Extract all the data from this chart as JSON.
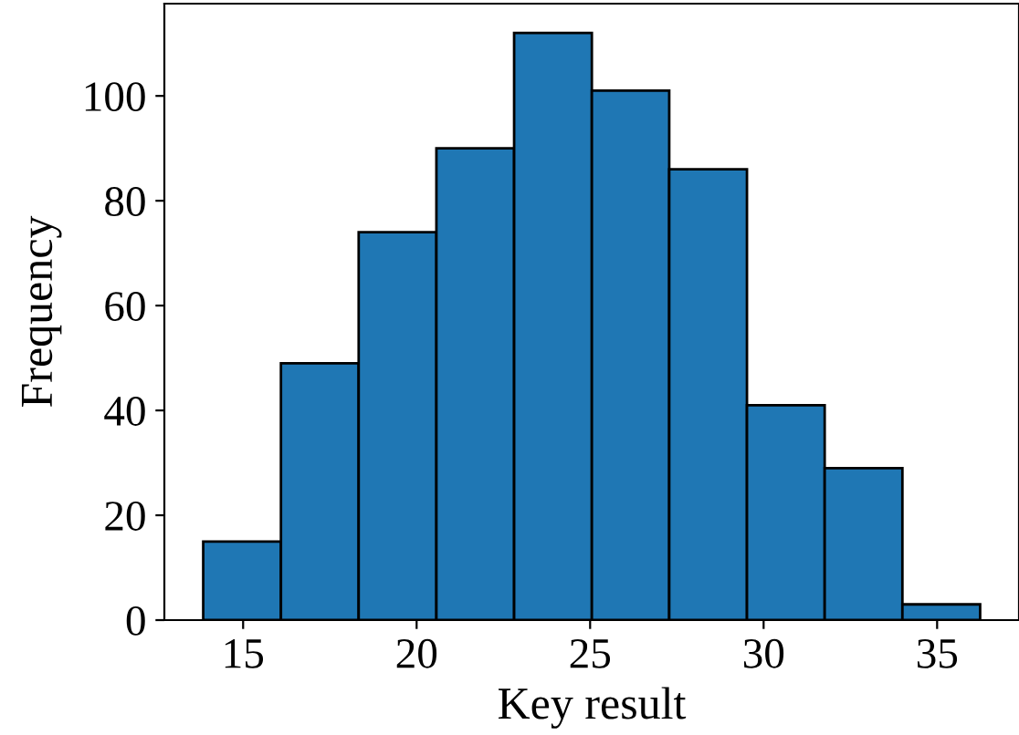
{
  "chart_data": {
    "type": "histogram",
    "xlabel": "Key result",
    "ylabel": "Frequency",
    "bins": [
      13.85,
      16.09,
      18.33,
      20.57,
      22.81,
      25.05,
      27.28,
      29.52,
      31.76,
      34.0,
      36.24
    ],
    "values": [
      15,
      49,
      74,
      90,
      112,
      101,
      86,
      41,
      29,
      3
    ],
    "color": "#1f77b4",
    "xlim": [
      12.73,
      37.36
    ],
    "ylim": [
      0,
      117.6
    ],
    "xticks": [
      15,
      20,
      25,
      30,
      35
    ],
    "yticks": [
      0,
      20,
      40,
      60,
      80,
      100
    ],
    "grid": false
  }
}
